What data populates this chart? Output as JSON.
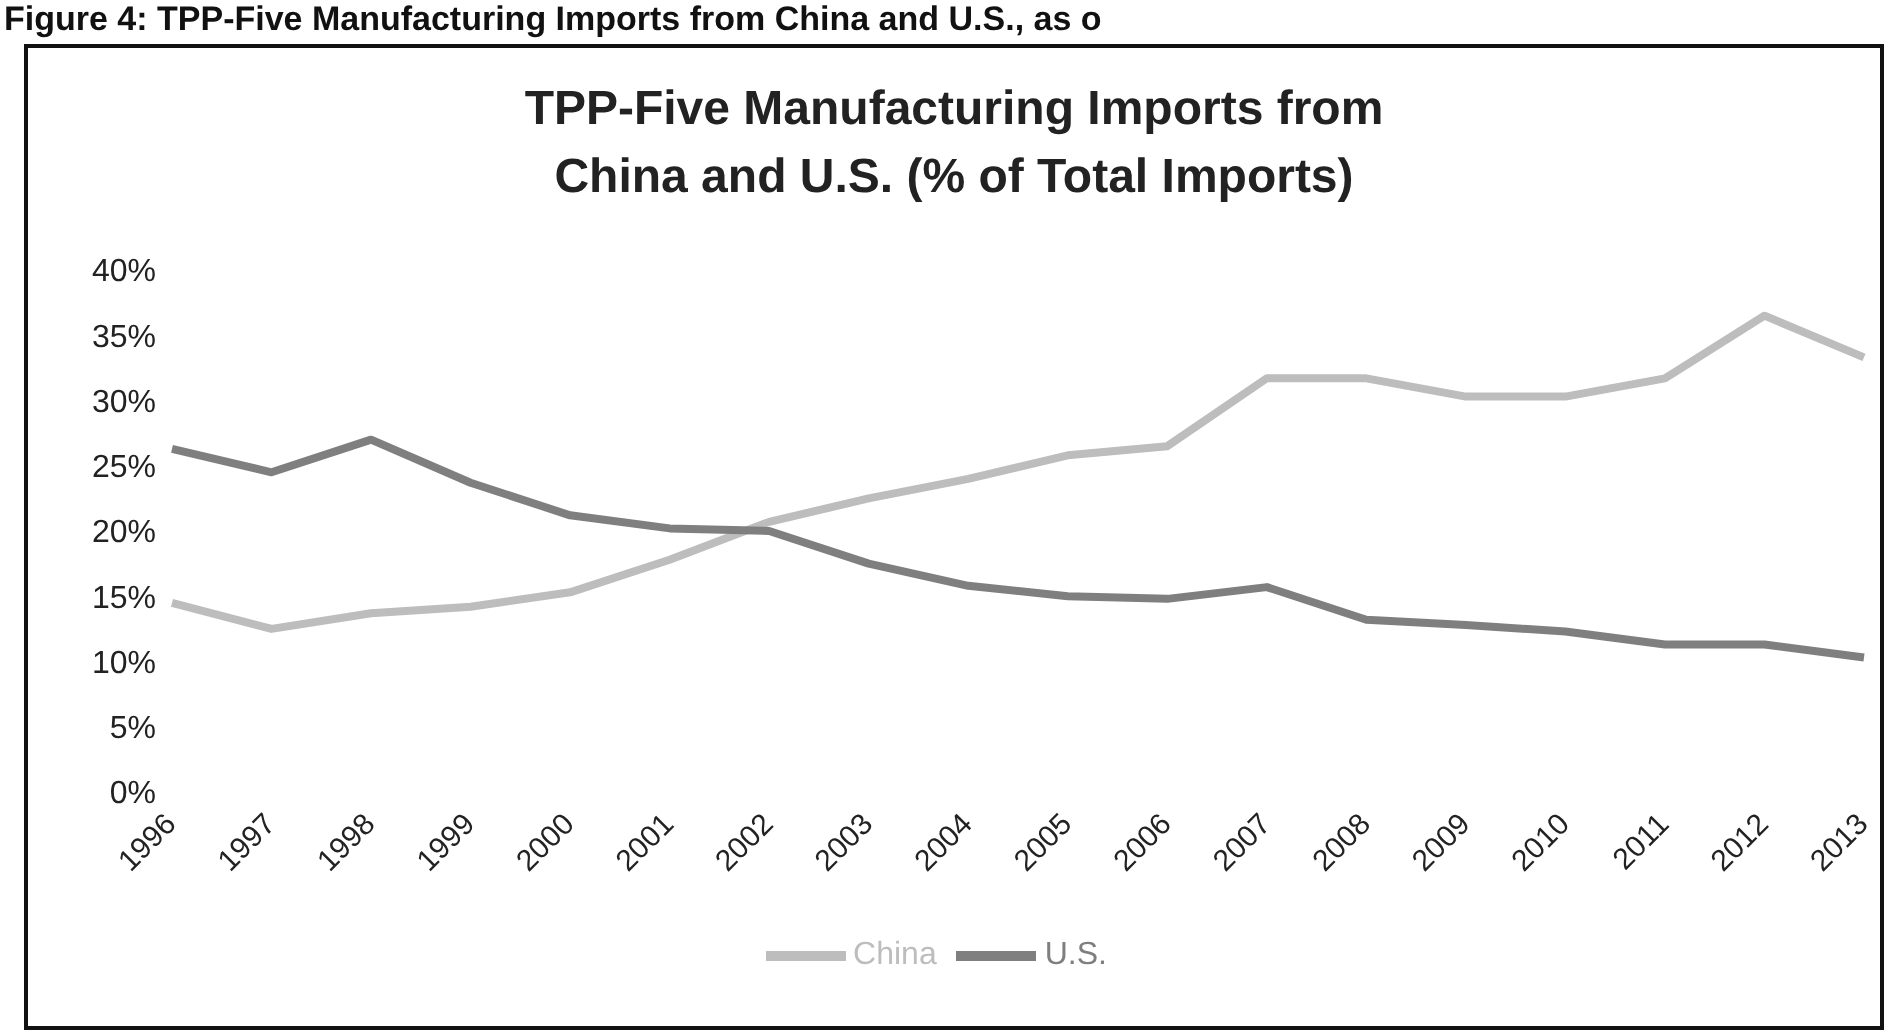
{
  "chart_data": {
    "type": "line",
    "title": "TPP-Five Manufacturing Imports from\nChina and U.S. (% of Total Imports)",
    "annotations": [
      "Figure 4: TPP-Five Manufacturing Imports from China and U.S., as o"
    ],
    "categories": [
      "1996",
      "1997",
      "1998",
      "1999",
      "2000",
      "2001",
      "2002",
      "2003",
      "2004",
      "2005",
      "2006",
      "2007",
      "2008",
      "2009",
      "2010",
      "2011",
      "2012",
      "2013"
    ],
    "series": [
      {
        "name": "China",
        "color": "#bdbdbd",
        "values": [
          14.5,
          12.5,
          13.7,
          14.2,
          15.3,
          17.8,
          20.7,
          22.5,
          24.0,
          25.8,
          26.5,
          31.7,
          31.7,
          30.3,
          30.3,
          31.7,
          36.5,
          33.3
        ]
      },
      {
        "name": "U.S.",
        "color": "#7f7f7f",
        "values": [
          26.3,
          24.5,
          27.0,
          23.7,
          21.2,
          20.2,
          20.0,
          17.5,
          15.8,
          15.0,
          14.8,
          15.7,
          13.2,
          12.8,
          12.3,
          11.3,
          11.3,
          10.3
        ]
      }
    ],
    "ylim": [
      0,
      40
    ],
    "yticks": [
      {
        "value": 0,
        "label": "0%"
      },
      {
        "value": 5,
        "label": "5%"
      },
      {
        "value": 10,
        "label": "10%"
      },
      {
        "value": 15,
        "label": "15%"
      },
      {
        "value": 20,
        "label": "20%"
      },
      {
        "value": 25,
        "label": "25%"
      },
      {
        "value": 30,
        "label": "30%"
      },
      {
        "value": 35,
        "label": "35%"
      },
      {
        "value": 40,
        "label": "40%"
      }
    ],
    "legend": "bottom"
  }
}
